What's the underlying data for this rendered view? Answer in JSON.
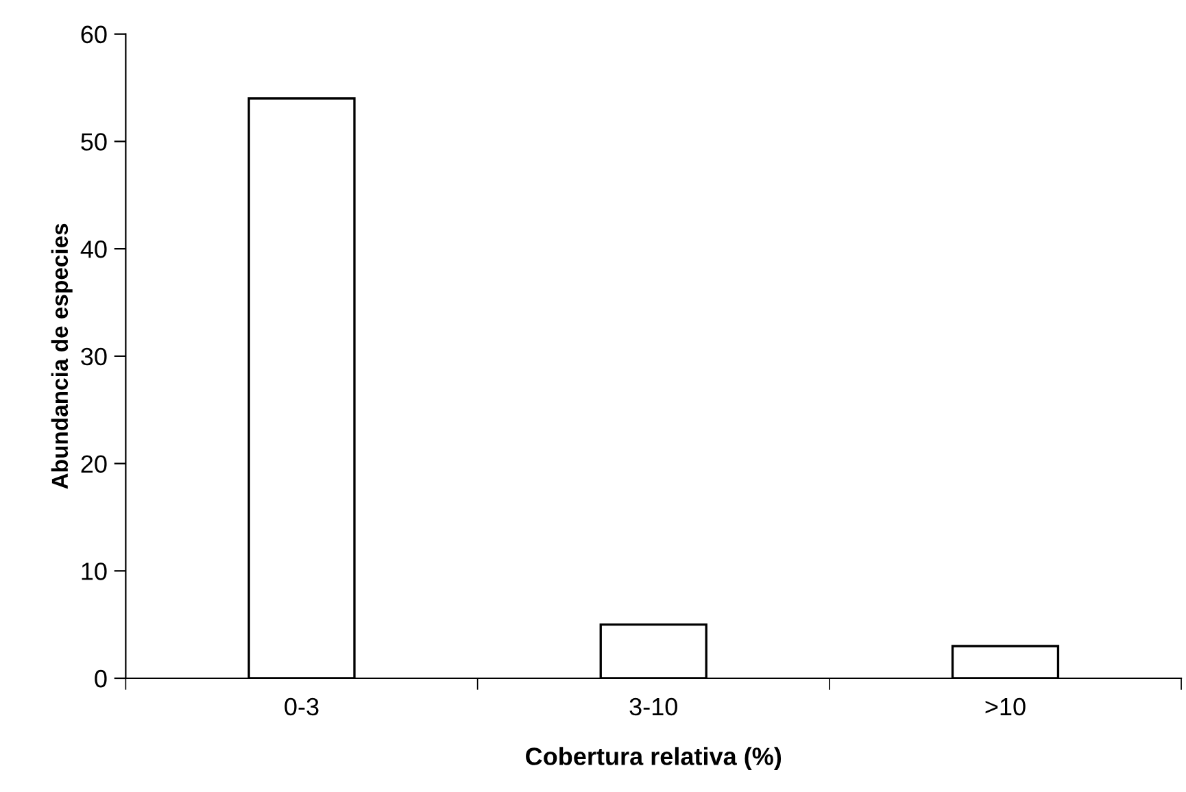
{
  "chart_data": {
    "type": "bar",
    "xlabel": "Cobertura relativa (%)",
    "ylabel": "Abundancia de especies",
    "categories": [
      "0-3",
      "3-10",
      ">10"
    ],
    "values": [
      54,
      5,
      3
    ],
    "color": "#ffffff",
    "ylim": [
      0,
      60
    ],
    "yticks": [
      0,
      10,
      20,
      30,
      40,
      50,
      60
    ],
    "grid": false,
    "legend": false
  }
}
